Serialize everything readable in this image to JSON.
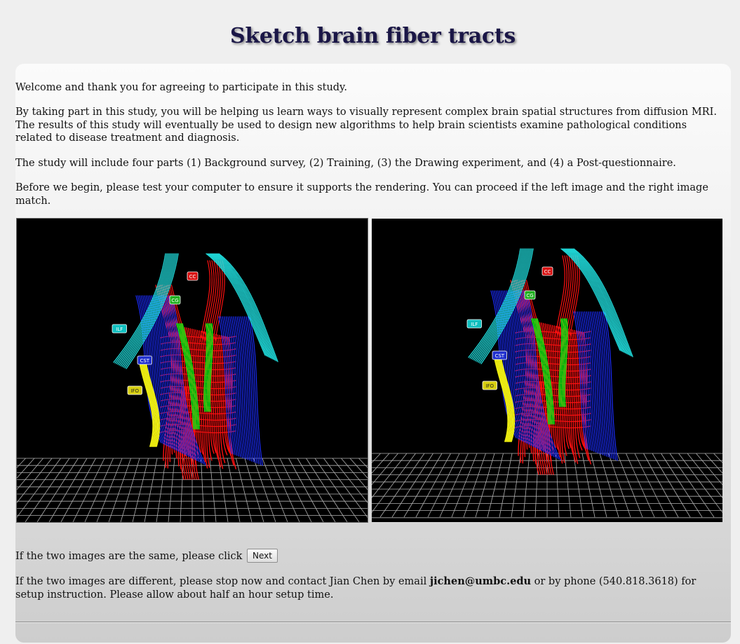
{
  "page": {
    "title": "Sketch brain fiber tracts"
  },
  "intro": {
    "welcome": "Welcome and thank you for agreeing to participate in this study.",
    "purpose": "By taking part in this study, you will be helping us learn ways to visually represent complex brain spatial structures from diffusion MRI. The results of this study will eventually be used to design new algorithms to help brain scientists examine pathological conditions related to disease treatment and diagnosis.",
    "parts": "The study will include four parts (1) Background survey, (2) Training, (3) the Drawing experiment, and (4) a Post-questionnaire.",
    "test": "Before we begin, please test your computer to ensure it supports the rendering. You can proceed if the left image and the right image match."
  },
  "renders": {
    "labels": {
      "cc": "CC",
      "cg": "CG",
      "ilf": "ILF",
      "cst": "CST",
      "ifo": "IFO"
    },
    "colors": {
      "background": "#000000",
      "cc": "#ff1010",
      "cg": "#10e010",
      "ilf": "#20e0e0",
      "cst": "#1a2cff",
      "ifo": "#f0f010",
      "grid": "#cfcfcf"
    }
  },
  "next_prompt": {
    "text": "If the two images are the same, please click",
    "button_label": "Next"
  },
  "contact": {
    "before": "If the two images are different, please stop now and contact Jian Chen by email ",
    "email": "jichen@umbc.edu",
    "after": " or by phone (540.818.3618) for setup instruction. Please allow about half an hour setup time."
  }
}
